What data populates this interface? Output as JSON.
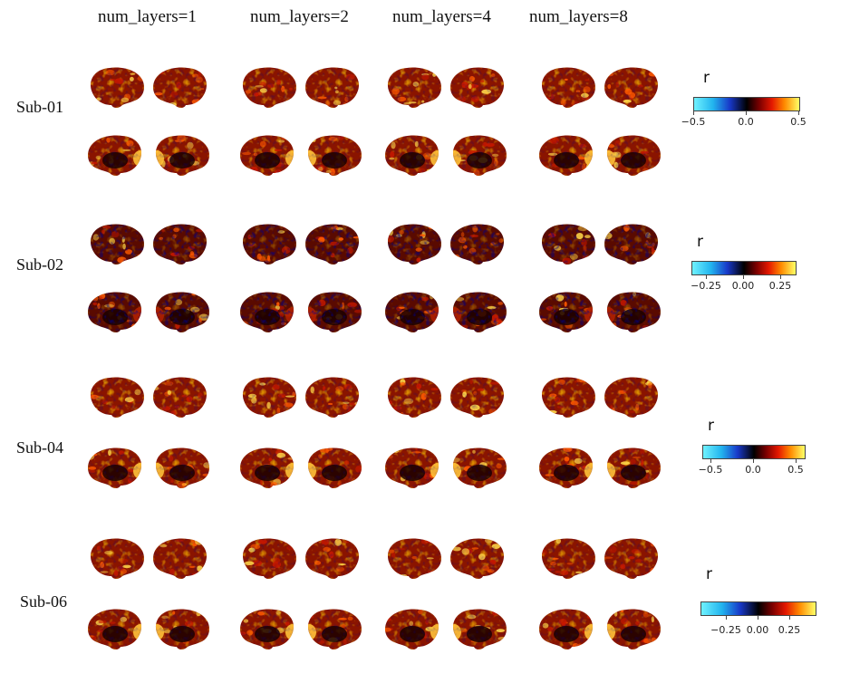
{
  "columns": [
    "num_layers=1",
    "num_layers=2",
    "num_layers=4",
    "num_layers=8"
  ],
  "subjects": [
    {
      "label": "Sub-01",
      "colorbar": {
        "title": "r",
        "ticks": [
          "−0.5",
          "0.0",
          "0.5"
        ],
        "range": [
          -0.5,
          0.5
        ]
      }
    },
    {
      "label": "Sub-02",
      "colorbar": {
        "title": "r",
        "ticks": [
          "−0.25",
          "0.00",
          "0.25"
        ],
        "range": [
          -0.35,
          0.35
        ]
      }
    },
    {
      "label": "Sub-04",
      "colorbar": {
        "title": "r",
        "ticks": [
          "−0.5",
          "0.0",
          "0.5"
        ],
        "range": [
          -0.6,
          0.6
        ]
      }
    },
    {
      "label": "Sub-06",
      "colorbar": {
        "title": "r",
        "ticks": [
          "−0.25",
          "0.00",
          "0.25"
        ],
        "range": [
          -0.4,
          0.4
        ]
      }
    }
  ],
  "colors": {
    "cmap": [
      "#6ff2ff",
      "#22b4ee",
      "#1838c8",
      "#000000",
      "#7a0000",
      "#e41800",
      "#ff8a00",
      "#ffff66"
    ]
  }
}
